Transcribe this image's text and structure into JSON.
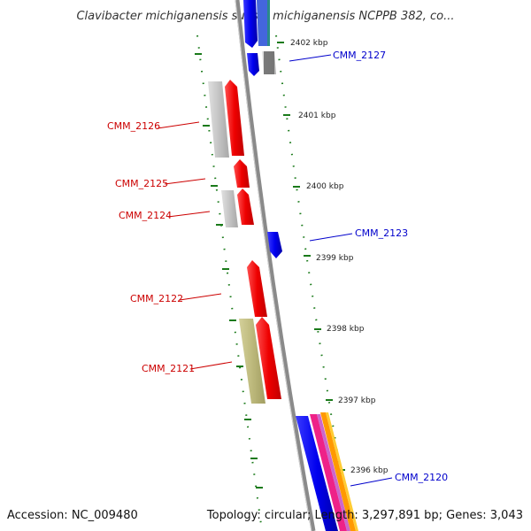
{
  "title": "Clavibacter michiganensis subsp. michiganensis NCPPB 382, co...",
  "footer": {
    "accession": "Accession: NC_009480",
    "summary": "Topology: circular; Length: 3,297,891 bp; Genes: 3,043"
  },
  "kbp_ticks": [
    "2402 kbp",
    "2401 kbp",
    "2400 kbp",
    "2399 kbp",
    "2398 kbp",
    "2397 kbp",
    "2396 kbp"
  ],
  "genes": [
    {
      "name": "CMM_2127",
      "strand": "reverse",
      "color": "#0000ee"
    },
    {
      "name": "CMM_2126",
      "strand": "forward",
      "color": "#ee0000"
    },
    {
      "name": "CMM_2125",
      "strand": "forward",
      "color": "#ee0000"
    },
    {
      "name": "CMM_2124",
      "strand": "forward",
      "color": "#ee0000"
    },
    {
      "name": "CMM_2123",
      "strand": "reverse",
      "color": "#0000ee"
    },
    {
      "name": "CMM_2122",
      "strand": "forward",
      "color": "#ee0000"
    },
    {
      "name": "CMM_2121",
      "strand": "forward",
      "color": "#ee0000"
    },
    {
      "name": "CMM_2120",
      "strand": "reverse",
      "color": "#0000ee"
    }
  ],
  "colors": {
    "forward_gene": "#ee0000",
    "reverse_gene": "#0000ee",
    "backbone": "#808080",
    "tick": "#1a7a1a",
    "gc_feature": "#c0c0c0",
    "olive_feature": "#b8b478"
  }
}
